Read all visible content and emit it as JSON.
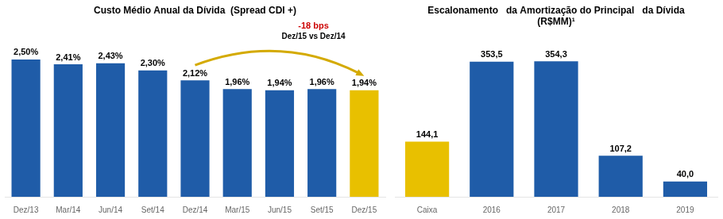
{
  "chart_data": [
    {
      "type": "bar",
      "title": "Custo Médio Anual da Dívida  (Spread CDI +)",
      "categories": [
        "Dez/13",
        "Mar/14",
        "Jun/14",
        "Set/14",
        "Dez/14",
        "Mar/15",
        "Jun/15",
        "Set/15",
        "Dez/15"
      ],
      "values": [
        2.5,
        2.41,
        2.43,
        2.3,
        2.12,
        1.96,
        1.94,
        1.96,
        1.94
      ],
      "value_labels": [
        "2,50%",
        "2,41%",
        "2,43%",
        "2,30%",
        "2,12%",
        "1,96%",
        "1,94%",
        "1,96%",
        "1,94%"
      ],
      "colors": [
        "#1F5CA8",
        "#1F5CA8",
        "#1F5CA8",
        "#1F5CA8",
        "#1F5CA8",
        "#1F5CA8",
        "#1F5CA8",
        "#1F5CA8",
        "#E8C000"
      ],
      "ylim": [
        0,
        3.2
      ],
      "grid": false,
      "data_labels": true,
      "tick_labels": "x",
      "annotations": [
        {
          "text": "-18 bps",
          "color": "#CC0000"
        },
        {
          "text": "Dez/15 vs Dez/14",
          "color": "#000000"
        }
      ],
      "arrow": {
        "from": "Dez/14",
        "to": "Dez/15",
        "color": "#D4AA00"
      }
    },
    {
      "type": "bar",
      "title": "Escalonamento   da Amortização do Principal   da Dívida\n(R$MM)¹",
      "categories": [
        "Caixa",
        "2016",
        "2017",
        "2018",
        "2019"
      ],
      "values": [
        144.1,
        353.5,
        354.3,
        107.2,
        40.0
      ],
      "value_labels": [
        "144,1",
        "353,5",
        "354,3",
        "107,2",
        "40,0"
      ],
      "colors": [
        "#E8C000",
        "#1F5CA8",
        "#1F5CA8",
        "#1F5CA8",
        "#1F5CA8"
      ],
      "ylim": [
        0,
        430
      ],
      "grid": false,
      "data_labels": true,
      "tick_labels": "x"
    }
  ]
}
